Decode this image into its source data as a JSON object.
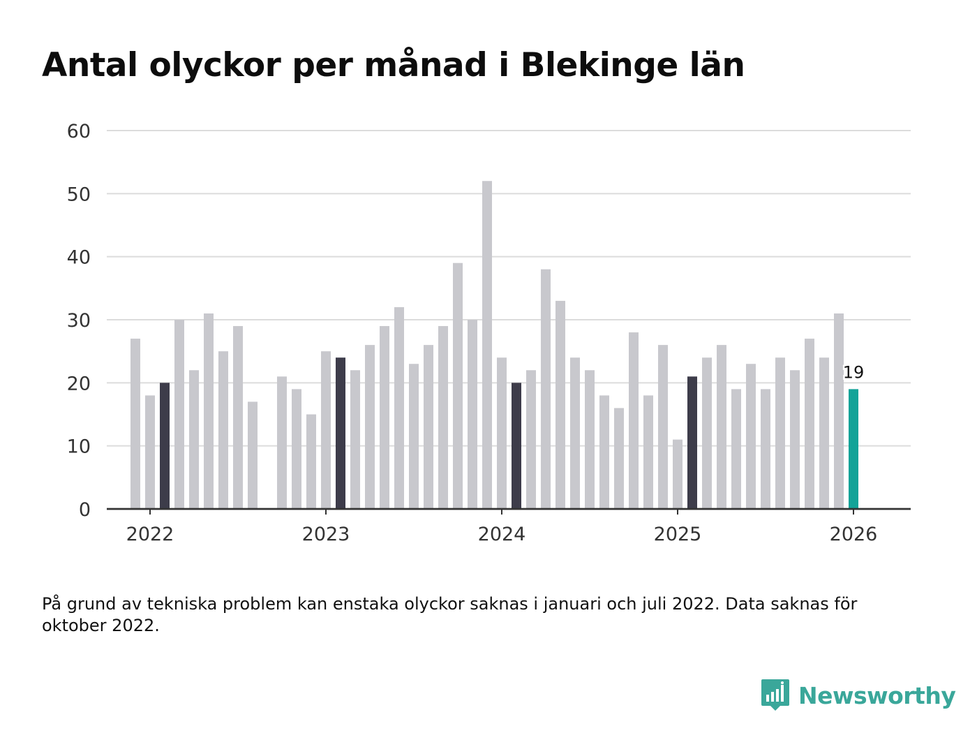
{
  "title": "Antal olyckor per månad i Blekinge län",
  "footnote": "På grund av tekniska problem kan enstaka olyckor saknas i januari och juli 2022. Data saknas för oktober 2022.",
  "brand": "Newsworthy",
  "colors": {
    "bar": "#c8c8cd",
    "highlight": "#3d3c4a",
    "latest": "#13a398",
    "grid": "#dcdcdc",
    "axis": "#333333",
    "brand": "#3aa79a"
  },
  "chart_data": {
    "type": "bar",
    "title": "Antal olyckor per månad i Blekinge län",
    "xlabel": "",
    "ylabel": "",
    "ylim": [
      0,
      60
    ],
    "yticks": [
      0,
      10,
      20,
      30,
      40,
      50,
      60
    ],
    "xticks": [
      "2022",
      "2023",
      "2024",
      "2025",
      "2026"
    ],
    "start": "2021-12",
    "values": [
      27,
      18,
      20,
      30,
      22,
      31,
      25,
      29,
      17,
      null,
      21,
      19,
      15,
      25,
      24,
      22,
      26,
      29,
      32,
      23,
      26,
      29,
      39,
      30,
      52,
      24,
      20,
      22,
      38,
      33,
      24,
      22,
      18,
      16,
      28,
      18,
      26,
      11,
      21,
      24,
      26,
      19,
      23,
      19,
      24,
      22,
      27,
      24,
      31,
      19
    ],
    "highlight_months": "February each year (dark bars)",
    "latest_label": "19"
  }
}
